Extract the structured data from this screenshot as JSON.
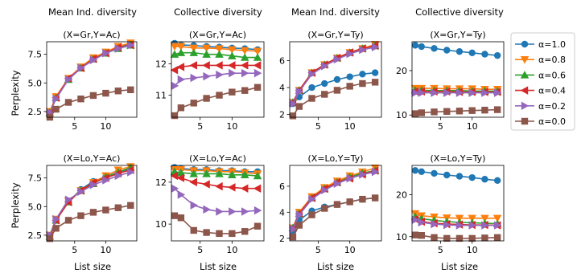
{
  "figure": {
    "column_headers": [
      "Mean Ind. diversity",
      "Collective diversity",
      "Mean Ind. diversity",
      "Collective diversity"
    ],
    "ylabel": "Perplexity",
    "xlabel": "List size"
  },
  "legend": [
    {
      "label": "α=1.0",
      "color": "#1f77b4",
      "marker": "circle"
    },
    {
      "label": "α=0.8",
      "color": "#ff7f0e",
      "marker": "triangle-down"
    },
    {
      "label": "α=0.6",
      "color": "#2ca02c",
      "marker": "triangle-up"
    },
    {
      "label": "α=0.4",
      "color": "#d62728",
      "marker": "triangle-left"
    },
    {
      "label": "α=0.2",
      "color": "#9467bd",
      "marker": "triangle-right"
    },
    {
      "label": "α=0.0",
      "color": "#8c564b",
      "marker": "square"
    }
  ],
  "chart_data": [
    {
      "type": "line",
      "title": "(X=Gr,Y=Ac)",
      "x": [
        1,
        2,
        4,
        6,
        8,
        10,
        12,
        14
      ],
      "xlim": [
        0.5,
        15
      ],
      "ylim": [
        2,
        8.6
      ],
      "xticks": [
        5,
        10
      ],
      "yticks": [
        2.5,
        5.0,
        7.5
      ],
      "ytick_labels": [
        "2.5",
        "5.0",
        "7.5"
      ],
      "series": [
        {
          "name": "α=1.0",
          "values": [
            2.4,
            3.7,
            5.3,
            6.3,
            7.1,
            7.6,
            8.1,
            8.4
          ]
        },
        {
          "name": "α=0.8",
          "values": [
            2.5,
            3.8,
            5.4,
            6.4,
            7.2,
            7.7,
            8.2,
            8.5
          ]
        },
        {
          "name": "α=0.6",
          "values": [
            2.4,
            3.7,
            5.3,
            6.3,
            7.1,
            7.6,
            8.0,
            8.3
          ]
        },
        {
          "name": "α=0.4",
          "values": [
            2.4,
            3.7,
            5.4,
            6.3,
            7.1,
            7.6,
            8.1,
            8.3
          ]
        },
        {
          "name": "α=0.2",
          "values": [
            2.4,
            3.6,
            5.3,
            6.3,
            7.0,
            7.6,
            8.0,
            8.3
          ]
        },
        {
          "name": "α=0.0",
          "values": [
            2.0,
            2.7,
            3.3,
            3.6,
            3.9,
            4.1,
            4.3,
            4.4
          ]
        }
      ]
    },
    {
      "type": "line",
      "title": "(X=Gr,Y=Ac)",
      "x": [
        1,
        2,
        4,
        6,
        8,
        10,
        12,
        14
      ],
      "xlim": [
        0.5,
        15
      ],
      "ylim": [
        10.3,
        12.7
      ],
      "xticks": [
        5,
        10
      ],
      "yticks": [
        11,
        12
      ],
      "ytick_labels": [
        "11",
        "12"
      ],
      "series": [
        {
          "name": "α=1.0",
          "values": [
            12.65,
            12.6,
            12.58,
            12.55,
            12.53,
            12.5,
            12.48,
            12.45
          ]
        },
        {
          "name": "α=0.8",
          "values": [
            12.55,
            12.55,
            12.5,
            12.5,
            12.48,
            12.45,
            12.42,
            12.4
          ]
        },
        {
          "name": "α=0.6",
          "values": [
            12.3,
            12.35,
            12.35,
            12.3,
            12.3,
            12.25,
            12.2,
            12.2
          ]
        },
        {
          "name": "α=0.4",
          "values": [
            11.8,
            11.9,
            11.95,
            11.95,
            11.95,
            11.95,
            11.95,
            11.95
          ]
        },
        {
          "name": "α=0.2",
          "values": [
            11.3,
            11.5,
            11.55,
            11.6,
            11.65,
            11.7,
            11.7,
            11.7
          ]
        },
        {
          "name": "α=0.0",
          "values": [
            10.35,
            10.6,
            10.75,
            10.9,
            11.0,
            11.1,
            11.15,
            11.25
          ]
        }
      ]
    },
    {
      "type": "line",
      "title": "(X=Gr,Y=Ty)",
      "x": [
        1,
        2,
        4,
        6,
        8,
        10,
        12,
        14
      ],
      "xlim": [
        0.5,
        15
      ],
      "ylim": [
        1.8,
        7.4
      ],
      "xticks": [
        5,
        10
      ],
      "yticks": [
        2,
        4,
        6
      ],
      "ytick_labels": [
        "2",
        "4",
        "6"
      ],
      "series": [
        {
          "name": "α=1.0",
          "values": [
            2.8,
            3.3,
            4.0,
            4.3,
            4.6,
            4.8,
            5.0,
            5.1
          ]
        },
        {
          "name": "α=0.8",
          "values": [
            2.9,
            3.8,
            5.1,
            5.7,
            6.2,
            6.6,
            6.9,
            7.2
          ]
        },
        {
          "name": "α=0.6",
          "values": [
            2.9,
            3.8,
            5.1,
            5.7,
            6.2,
            6.6,
            6.9,
            7.1
          ]
        },
        {
          "name": "α=0.4",
          "values": [
            2.9,
            3.8,
            5.1,
            5.7,
            6.2,
            6.6,
            6.9,
            7.1
          ]
        },
        {
          "name": "α=0.2",
          "values": [
            2.8,
            3.7,
            5.0,
            5.6,
            6.1,
            6.5,
            6.8,
            7.0
          ]
        },
        {
          "name": "α=0.0",
          "values": [
            1.9,
            2.6,
            3.2,
            3.5,
            3.8,
            4.1,
            4.3,
            4.4
          ]
        }
      ]
    },
    {
      "type": "line",
      "title": "(X=Gr,Y=Ty)",
      "x": [
        1,
        2,
        4,
        6,
        8,
        10,
        12,
        14
      ],
      "xlim": [
        0.5,
        15
      ],
      "ylim": [
        9.5,
        26.5
      ],
      "xticks": [
        5,
        10
      ],
      "yticks": [
        10,
        20
      ],
      "ytick_labels": [
        "10",
        "20"
      ],
      "series": [
        {
          "name": "α=1.0",
          "values": [
            25.7,
            25.4,
            25.0,
            24.6,
            24.3,
            24.0,
            23.7,
            23.4
          ]
        },
        {
          "name": "α=0.8",
          "values": [
            16.0,
            16.0,
            16.0,
            15.9,
            15.9,
            15.9,
            15.8,
            15.8
          ]
        },
        {
          "name": "α=0.6",
          "values": [
            15.6,
            15.6,
            15.5,
            15.5,
            15.5,
            15.4,
            15.4,
            15.4
          ]
        },
        {
          "name": "α=0.4",
          "values": [
            15.3,
            15.3,
            15.3,
            15.3,
            15.2,
            15.2,
            15.2,
            15.2
          ]
        },
        {
          "name": "α=0.2",
          "values": [
            15.0,
            15.0,
            15.0,
            15.0,
            15.0,
            15.0,
            15.0,
            15.0
          ]
        },
        {
          "name": "α=0.0",
          "values": [
            10.3,
            10.5,
            10.7,
            10.8,
            10.9,
            11.0,
            11.1,
            11.2
          ]
        }
      ]
    },
    {
      "type": "line",
      "title": "(X=Lo,Y=Ac)",
      "x": [
        1,
        2,
        4,
        6,
        8,
        10,
        12,
        14
      ],
      "xlim": [
        0.5,
        15
      ],
      "ylim": [
        2,
        8.6
      ],
      "xticks": [
        5,
        10
      ],
      "yticks": [
        2.5,
        5.0,
        7.5
      ],
      "ytick_labels": [
        "2.5",
        "5.0",
        "7.5"
      ],
      "series": [
        {
          "name": "α=1.0",
          "values": [
            2.4,
            3.8,
            5.4,
            6.5,
            7.2,
            7.6,
            8.0,
            8.3
          ]
        },
        {
          "name": "α=0.8",
          "values": [
            2.5,
            3.9,
            5.5,
            6.4,
            7.1,
            7.7,
            8.2,
            8.5
          ]
        },
        {
          "name": "α=0.6",
          "values": [
            2.4,
            3.8,
            5.4,
            6.4,
            7.0,
            7.6,
            8.0,
            8.4
          ]
        },
        {
          "name": "α=0.4",
          "values": [
            2.4,
            3.8,
            5.4,
            6.4,
            7.1,
            7.5,
            7.9,
            8.2
          ]
        },
        {
          "name": "α=0.2",
          "values": [
            2.5,
            3.9,
            5.6,
            6.3,
            6.9,
            7.3,
            7.7,
            8.0
          ]
        },
        {
          "name": "α=0.0",
          "values": [
            2.2,
            3.1,
            3.8,
            4.2,
            4.5,
            4.7,
            4.9,
            5.1
          ]
        }
      ]
    },
    {
      "type": "line",
      "title": "(X=Lo,Y=Ac)",
      "x": [
        1,
        2,
        4,
        6,
        8,
        10,
        12,
        14
      ],
      "xlim": [
        0.5,
        15
      ],
      "ylim": [
        9.2,
        12.8
      ],
      "xticks": [
        5,
        10
      ],
      "yticks": [
        10,
        12
      ],
      "ytick_labels": [
        "10",
        "12"
      ],
      "series": [
        {
          "name": "α=1.0",
          "values": [
            12.7,
            12.65,
            12.6,
            12.6,
            12.55,
            12.55,
            12.5,
            12.5
          ]
        },
        {
          "name": "α=0.8",
          "values": [
            12.6,
            12.6,
            12.55,
            12.55,
            12.5,
            12.5,
            12.45,
            12.4
          ]
        },
        {
          "name": "α=0.6",
          "values": [
            12.5,
            12.45,
            12.4,
            12.4,
            12.4,
            12.35,
            12.35,
            12.3
          ]
        },
        {
          "name": "α=0.4",
          "values": [
            12.3,
            12.2,
            12.0,
            11.9,
            11.8,
            11.75,
            11.7,
            11.7
          ]
        },
        {
          "name": "α=0.2",
          "values": [
            11.7,
            11.4,
            10.9,
            10.7,
            10.6,
            10.6,
            10.6,
            10.65
          ]
        },
        {
          "name": "α=0.0",
          "values": [
            10.4,
            10.3,
            9.7,
            9.6,
            9.55,
            9.55,
            9.65,
            9.9
          ]
        }
      ]
    },
    {
      "type": "line",
      "title": "(X=Lo,Y=Ty)",
      "x": [
        1,
        2,
        4,
        6,
        8,
        10,
        12,
        14
      ],
      "xlim": [
        0.5,
        15
      ],
      "ylim": [
        1.8,
        7.6
      ],
      "xticks": [
        5,
        10
      ],
      "yticks": [
        2,
        4,
        6
      ],
      "ytick_labels": [
        "2",
        "4",
        "6"
      ],
      "series": [
        {
          "name": "α=1.0",
          "values": [
            2.5,
            3.4,
            4.1,
            4.4,
            4.6,
            4.8,
            5.0,
            5.1
          ]
        },
        {
          "name": "α=0.8",
          "values": [
            2.8,
            4.0,
            5.2,
            5.9,
            6.4,
            6.8,
            7.1,
            7.4
          ]
        },
        {
          "name": "α=0.6",
          "values": [
            2.8,
            3.9,
            5.1,
            5.8,
            6.3,
            6.7,
            7.0,
            7.2
          ]
        },
        {
          "name": "α=0.4",
          "values": [
            2.8,
            3.9,
            5.1,
            5.8,
            6.3,
            6.6,
            6.9,
            7.2
          ]
        },
        {
          "name": "α=0.2",
          "values": [
            2.7,
            3.8,
            5.0,
            5.7,
            6.2,
            6.6,
            6.9,
            7.1
          ]
        },
        {
          "name": "α=0.0",
          "values": [
            2.1,
            3.0,
            3.8,
            4.3,
            4.6,
            4.8,
            5.0,
            5.1
          ]
        }
      ]
    },
    {
      "type": "line",
      "title": "(X=Lo,Y=Ty)",
      "x": [
        1,
        2,
        4,
        6,
        8,
        10,
        12,
        14
      ],
      "xlim": [
        0.5,
        15
      ],
      "ylim": [
        9.0,
        27.0
      ],
      "xticks": [
        5,
        10
      ],
      "yticks": [
        10,
        20
      ],
      "ytick_labels": [
        "10",
        "20"
      ],
      "series": [
        {
          "name": "α=1.0",
          "values": [
            25.8,
            25.5,
            25.1,
            24.7,
            24.4,
            24.1,
            23.7,
            23.4
          ]
        },
        {
          "name": "α=0.8",
          "values": [
            15.5,
            15.0,
            14.7,
            14.5,
            14.4,
            14.4,
            14.4,
            14.4
          ]
        },
        {
          "name": "α=0.6",
          "values": [
            14.8,
            14.3,
            13.9,
            13.6,
            13.4,
            13.3,
            13.2,
            13.1
          ]
        },
        {
          "name": "α=0.4",
          "values": [
            14.2,
            13.6,
            13.2,
            13.0,
            12.9,
            12.8,
            12.8,
            12.7
          ]
        },
        {
          "name": "α=0.2",
          "values": [
            14.0,
            13.4,
            13.0,
            12.8,
            12.7,
            12.7,
            12.7,
            12.7
          ]
        },
        {
          "name": "α=0.0",
          "values": [
            10.4,
            10.3,
            9.8,
            9.6,
            9.6,
            9.6,
            9.7,
            9.8
          ]
        }
      ]
    }
  ]
}
